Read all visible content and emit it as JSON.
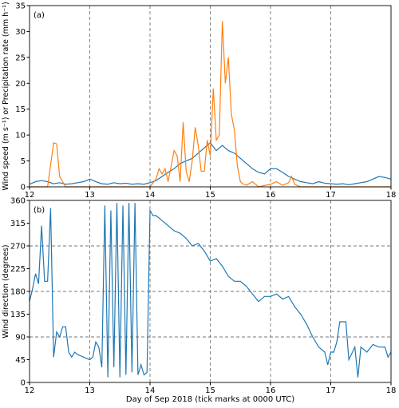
{
  "chart_data": [
    {
      "type": "line",
      "annotation": "(a)",
      "ylabel": "Wind speed (m s⁻¹) or Precipitation rate (mm h⁻¹)",
      "xlim": [
        12,
        18
      ],
      "xticks": [
        12,
        13,
        14,
        15,
        16,
        17,
        18
      ],
      "ylim": [
        0,
        35
      ],
      "yticks": [
        0,
        5,
        10,
        15,
        20,
        25,
        30,
        35
      ],
      "xgrid": [
        13,
        14,
        15,
        16,
        17
      ],
      "ygrid": [],
      "series": [
        {
          "color": "#1f77b4",
          "x": [
            12.0,
            12.1,
            12.2,
            12.3,
            12.4,
            12.5,
            12.6,
            12.7,
            12.8,
            12.9,
            13.0,
            13.1,
            13.2,
            13.3,
            13.4,
            13.5,
            13.6,
            13.7,
            13.8,
            13.9,
            14.0,
            14.1,
            14.2,
            14.3,
            14.4,
            14.5,
            14.6,
            14.7,
            14.8,
            14.9,
            15.0,
            15.1,
            15.2,
            15.3,
            15.4,
            15.5,
            15.6,
            15.7,
            15.8,
            15.9,
            16.0,
            16.1,
            16.2,
            16.3,
            16.4,
            16.5,
            16.6,
            16.7,
            16.8,
            16.9,
            17.0,
            17.1,
            17.2,
            17.3,
            17.4,
            17.5,
            17.6,
            17.7,
            17.8,
            17.9,
            18.0
          ],
          "values": [
            0.5,
            1.0,
            1.2,
            1.0,
            0.6,
            0.8,
            0.5,
            0.6,
            0.8,
            1.0,
            1.5,
            1.0,
            0.6,
            0.5,
            0.8,
            0.6,
            0.7,
            0.5,
            0.6,
            0.5,
            0.8,
            1.2,
            2.0,
            2.8,
            3.5,
            4.5,
            5.0,
            5.5,
            6.5,
            7.5,
            8.5,
            7.0,
            8.0,
            7.0,
            6.5,
            5.5,
            4.5,
            3.5,
            2.8,
            2.5,
            3.5,
            3.5,
            2.8,
            2.0,
            1.5,
            1.0,
            0.8,
            0.6,
            1.0,
            0.7,
            0.6,
            0.5,
            0.6,
            0.4,
            0.6,
            0.8,
            1.0,
            1.5,
            2.0,
            1.8,
            1.5
          ]
        },
        {
          "color": "#ff7f0e",
          "x": [
            12.0,
            12.3,
            12.4,
            12.45,
            12.5,
            12.55,
            12.6,
            13.0,
            13.5,
            14.0,
            14.1,
            14.15,
            14.2,
            14.25,
            14.3,
            14.35,
            14.4,
            14.45,
            14.5,
            14.55,
            14.6,
            14.65,
            14.7,
            14.75,
            14.8,
            14.85,
            14.9,
            14.95,
            15.0,
            15.05,
            15.1,
            15.15,
            15.2,
            15.25,
            15.3,
            15.35,
            15.4,
            15.45,
            15.5,
            15.55,
            15.6,
            15.7,
            15.8,
            16.0,
            16.1,
            16.2,
            16.3,
            16.35,
            16.4,
            16.5,
            17.0,
            18.0
          ],
          "values": [
            0,
            0,
            8.5,
            8.3,
            2,
            1,
            0,
            0,
            0,
            0,
            1.5,
            3.5,
            2.5,
            3.5,
            1,
            4,
            7,
            6,
            1,
            12.5,
            3,
            1,
            5,
            11.5,
            8,
            3,
            3,
            9,
            6,
            19,
            9,
            10,
            32,
            20,
            25,
            14,
            11,
            4,
            1,
            0.5,
            0.3,
            1,
            0,
            0.5,
            1.0,
            0.3,
            0.8,
            2,
            0.5,
            0,
            0,
            0
          ]
        }
      ]
    },
    {
      "type": "line",
      "annotation": "(b)",
      "ylabel": "Wind direction (degrees)",
      "xlabel": "Day of Sep 2018 (tick marks at 0000 UTC)",
      "xlim": [
        12,
        18
      ],
      "xticks": [
        12,
        13,
        14,
        15,
        16,
        17,
        18
      ],
      "ylim": [
        0,
        360
      ],
      "yticks": [
        0,
        45,
        90,
        135,
        180,
        225,
        270,
        315,
        360
      ],
      "xgrid": [
        13,
        14,
        15,
        16,
        17
      ],
      "ygrid": [
        90,
        180,
        270
      ],
      "series": [
        {
          "color": "#1f77b4",
          "x": [
            12.0,
            12.05,
            12.1,
            12.15,
            12.2,
            12.25,
            12.3,
            12.35,
            12.4,
            12.45,
            12.5,
            12.55,
            12.6,
            12.65,
            12.7,
            12.75,
            12.8,
            12.9,
            13.0,
            13.05,
            13.1,
            13.15,
            13.2,
            13.25,
            13.3,
            13.35,
            13.4,
            13.45,
            13.5,
            13.55,
            13.6,
            13.65,
            13.7,
            13.75,
            13.8,
            13.85,
            13.9,
            13.95,
            14.0,
            14.05,
            14.1,
            14.2,
            14.3,
            14.4,
            14.5,
            14.6,
            14.7,
            14.8,
            14.9,
            15.0,
            15.1,
            15.2,
            15.3,
            15.4,
            15.5,
            15.6,
            15.7,
            15.8,
            15.9,
            16.0,
            16.1,
            16.2,
            16.3,
            16.4,
            16.5,
            16.6,
            16.7,
            16.8,
            16.9,
            16.95,
            17.0,
            17.05,
            17.1,
            17.15,
            17.25,
            17.3,
            17.4,
            17.45,
            17.5,
            17.6,
            17.7,
            17.8,
            17.9,
            17.95,
            18.0
          ],
          "values": [
            160,
            185,
            215,
            195,
            310,
            200,
            200,
            345,
            50,
            100,
            90,
            110,
            110,
            60,
            50,
            60,
            55,
            50,
            45,
            50,
            80,
            70,
            30,
            350,
            10,
            340,
            30,
            355,
            10,
            350,
            15,
            355,
            20,
            355,
            15,
            35,
            15,
            20,
            340,
            330,
            330,
            320,
            310,
            300,
            295,
            285,
            270,
            275,
            260,
            240,
            245,
            230,
            210,
            200,
            200,
            190,
            175,
            160,
            170,
            170,
            175,
            165,
            170,
            150,
            135,
            115,
            90,
            70,
            60,
            35,
            60,
            60,
            80,
            120,
            120,
            45,
            70,
            10,
            70,
            60,
            75,
            70,
            70,
            50,
            60
          ]
        }
      ]
    }
  ]
}
